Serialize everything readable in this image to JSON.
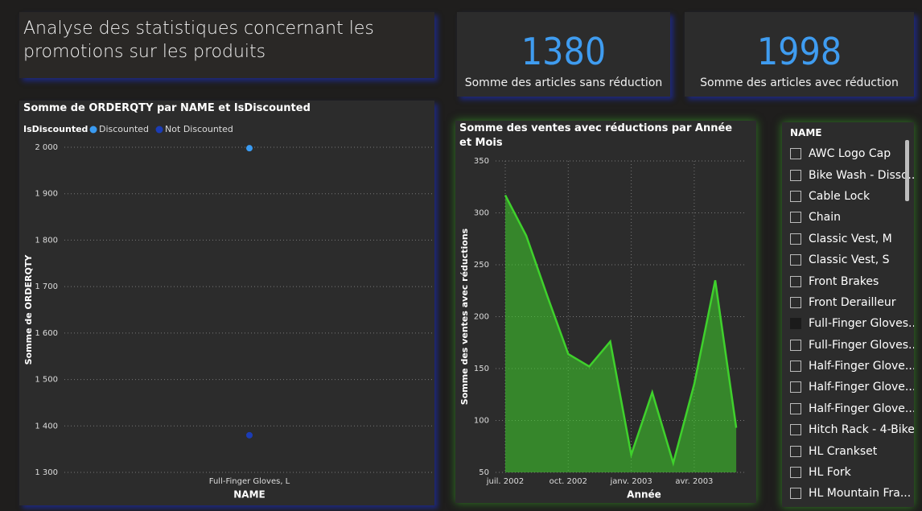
{
  "header": {
    "title": "Analyse des statistiques concernant les promotions sur les produits"
  },
  "cards": [
    {
      "value": 1380,
      "label": "Somme des articles sans réduction"
    },
    {
      "value": 1998,
      "label": "Somme des articles avec réduction"
    }
  ],
  "chart_data": [
    {
      "type": "line",
      "title": "Somme de ORDERQTY par NAME et IsDiscounted",
      "legend_title": "IsDiscounted",
      "x_label": "NAME",
      "y_label": "Somme de ORDERQTY",
      "categories": [
        "Full-Finger Gloves, L"
      ],
      "series": [
        {
          "name": "Discounted",
          "color": "#3a9bf2",
          "values": [
            1998
          ]
        },
        {
          "name": "Not Discounted",
          "color": "#1b3cb5",
          "values": [
            1380
          ]
        }
      ],
      "ylim": [
        1300,
        2000
      ],
      "yticks": [
        {
          "value": 1300,
          "label": "1 300"
        },
        {
          "value": 1400,
          "label": "1 400"
        },
        {
          "value": 1500,
          "label": "1 500"
        },
        {
          "value": 1600,
          "label": "1 600"
        },
        {
          "value": 1700,
          "label": "1 700"
        },
        {
          "value": 1800,
          "label": "1 800"
        },
        {
          "value": 1900,
          "label": "1 900"
        },
        {
          "value": 2000,
          "label": "2 000"
        }
      ],
      "grid": true
    },
    {
      "type": "area",
      "title": "Somme des ventes avec réductions par Année et Mois",
      "x_label": "Année",
      "y_label": "Somme des ventes avec réductions",
      "categories": [
        "juil. 2002",
        null,
        null,
        "oct. 2002",
        null,
        null,
        "janv. 2003",
        null,
        null,
        "avr. 2003",
        null,
        null
      ],
      "series": [
        {
          "name": "Somme des ventes avec réductions",
          "color": "#3fd12c",
          "values": [
            317,
            278,
            220,
            164,
            152,
            176,
            67,
            127,
            59,
            135,
            235,
            93
          ]
        }
      ],
      "ylim": [
        50,
        350
      ],
      "yticks": [
        50,
        100,
        150,
        200,
        250,
        300,
        350
      ],
      "grid": true
    }
  ],
  "slicer": {
    "title": "NAME",
    "items": [
      "AWC Logo Cap",
      "Bike Wash - Disso...",
      "Cable Lock",
      "Chain",
      "Classic Vest, M",
      "Classic Vest, S",
      "Front Brakes",
      "Front Derailleur",
      "Full-Finger Gloves...",
      "Full-Finger Gloves...",
      "Half-Finger Glove...",
      "Half-Finger Glove...",
      "Half-Finger Glove...",
      "Hitch Rack - 4-Bike",
      "HL Crankset",
      "HL Fork",
      "HL Mountain Fra..."
    ]
  }
}
